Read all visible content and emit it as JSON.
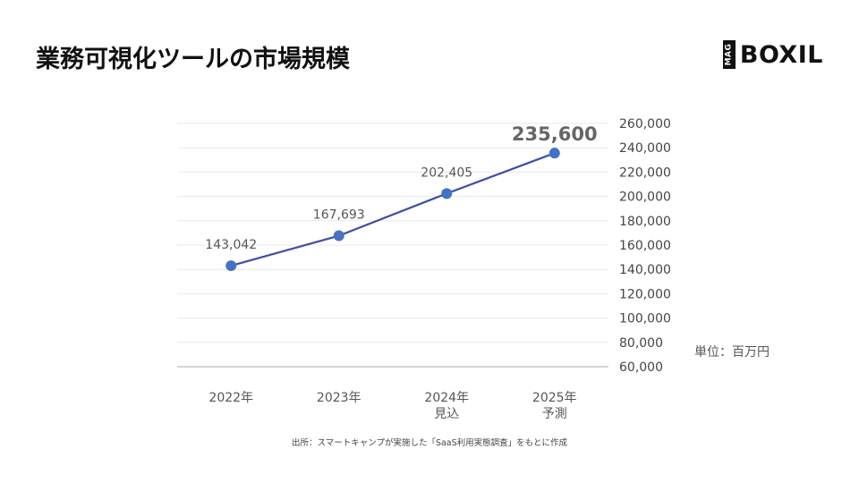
{
  "page": {
    "title": "業務可視化ツールの市場規模",
    "logo_mark": "MAG",
    "logo_text": "BOXIL",
    "unit_label": "単位：百万円",
    "source": "出所：スマートキャンプが実施した「SaaS利用実態調査」をもとに作成"
  },
  "chart_data": {
    "type": "line",
    "title": "業務可視化ツールの市場規模",
    "xlabel": "",
    "ylabel": "",
    "y_unit": "単位：百万円",
    "categories": [
      [
        "2022年"
      ],
      [
        "2023年"
      ],
      [
        "2024年",
        "見込"
      ],
      [
        "2025年",
        "予測"
      ]
    ],
    "series": [
      {
        "values": [
          143042,
          167693,
          202405,
          235600
        ],
        "labels": [
          "143,042",
          "167,693",
          "202,405",
          "235,600"
        ],
        "highlight_index": 3,
        "color": "#3d4fa8",
        "marker_color": "#4472c4"
      }
    ],
    "ylim": [
      60000,
      260000
    ],
    "yticks": [
      60000,
      80000,
      100000,
      120000,
      140000,
      160000,
      180000,
      200000,
      220000,
      240000,
      260000
    ],
    "ytick_labels": [
      "60,000",
      "80,000",
      "100,000",
      "120,000",
      "140,000",
      "160,000",
      "180,000",
      "200,000",
      "220,000",
      "240,000",
      "260,000"
    ],
    "y_axis_side": "right",
    "grid": true
  }
}
